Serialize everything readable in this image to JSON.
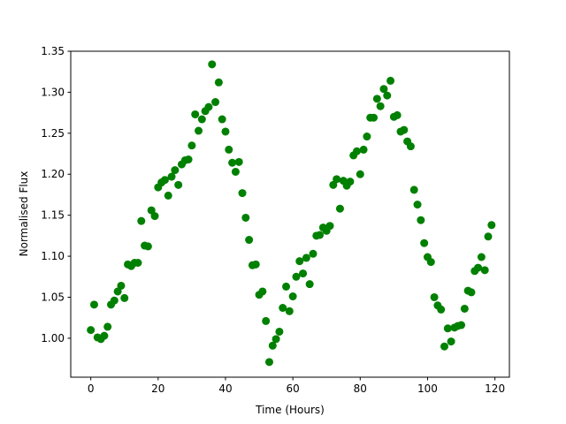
{
  "chart_data": {
    "type": "scatter",
    "title": "",
    "xlabel": "Time (Hours)",
    "ylabel": "Normalised Flux",
    "xlim": [
      -5.95,
      124.3
    ],
    "ylim": [
      0.9525,
      1.35
    ],
    "xticks": [
      0,
      20,
      40,
      60,
      80,
      100,
      120
    ],
    "yticks": [
      "1.00",
      "1.05",
      "1.10",
      "1.15",
      "1.20",
      "1.25",
      "1.30",
      "1.35"
    ],
    "grid": false,
    "marker_color": "#008000",
    "x": [
      0,
      1,
      2,
      3,
      4,
      5,
      6,
      7,
      8,
      9,
      10,
      11,
      12,
      13,
      14,
      15,
      16,
      17,
      18,
      19,
      20,
      21,
      22,
      23,
      24,
      25,
      26,
      27,
      28,
      29,
      30,
      31,
      32,
      33,
      34,
      35,
      36,
      37,
      38,
      39,
      40,
      41,
      42,
      43,
      44,
      45,
      46,
      47,
      48,
      49,
      50,
      51,
      52,
      53,
      54,
      55,
      56,
      57,
      58,
      59,
      60,
      61,
      62,
      63,
      64,
      65,
      66,
      67,
      68,
      69,
      70,
      71,
      72,
      73,
      74,
      75,
      76,
      77,
      78,
      79,
      80,
      81,
      82,
      83,
      84,
      85,
      86,
      87,
      88,
      89,
      90,
      91,
      92,
      93,
      94,
      95,
      96,
      97,
      98,
      99,
      100,
      101,
      102,
      103,
      104,
      105,
      106,
      107,
      108,
      109,
      110,
      111,
      112,
      113,
      114,
      115,
      116,
      117,
      118,
      119
    ],
    "y": [
      1.01,
      1.041,
      1.001,
      0.999,
      1.003,
      1.014,
      1.041,
      1.046,
      1.057,
      1.064,
      1.049,
      1.09,
      1.088,
      1.092,
      1.092,
      1.143,
      1.113,
      1.112,
      1.156,
      1.149,
      1.184,
      1.19,
      1.193,
      1.174,
      1.197,
      1.205,
      1.187,
      1.212,
      1.217,
      1.218,
      1.235,
      1.273,
      1.253,
      1.267,
      1.277,
      1.282,
      1.334,
      1.288,
      1.312,
      1.267,
      1.252,
      1.23,
      1.214,
      1.203,
      1.215,
      1.177,
      1.147,
      1.12,
      1.089,
      1.09,
      1.053,
      1.057,
      1.021,
      0.971,
      0.991,
      0.999,
      1.008,
      1.037,
      1.063,
      1.033,
      1.051,
      1.075,
      1.094,
      1.079,
      1.098,
      1.066,
      1.103,
      1.125,
      1.126,
      1.135,
      1.131,
      1.137,
      1.187,
      1.194,
      1.158,
      1.192,
      1.186,
      1.191,
      1.223,
      1.228,
      1.2,
      1.23,
      1.246,
      1.269,
      1.269,
      1.292,
      1.283,
      1.304,
      1.296,
      1.314,
      1.27,
      1.272,
      1.252,
      1.254,
      1.24,
      1.234,
      1.181,
      1.163,
      1.144,
      1.116,
      1.099,
      1.093,
      1.05,
      1.04,
      1.035,
      0.99,
      1.012,
      0.996,
      1.013,
      1.015,
      1.016,
      1.036,
      1.058,
      1.056,
      1.082,
      1.086,
      1.099,
      1.083,
      1.124,
      1.138
    ]
  }
}
